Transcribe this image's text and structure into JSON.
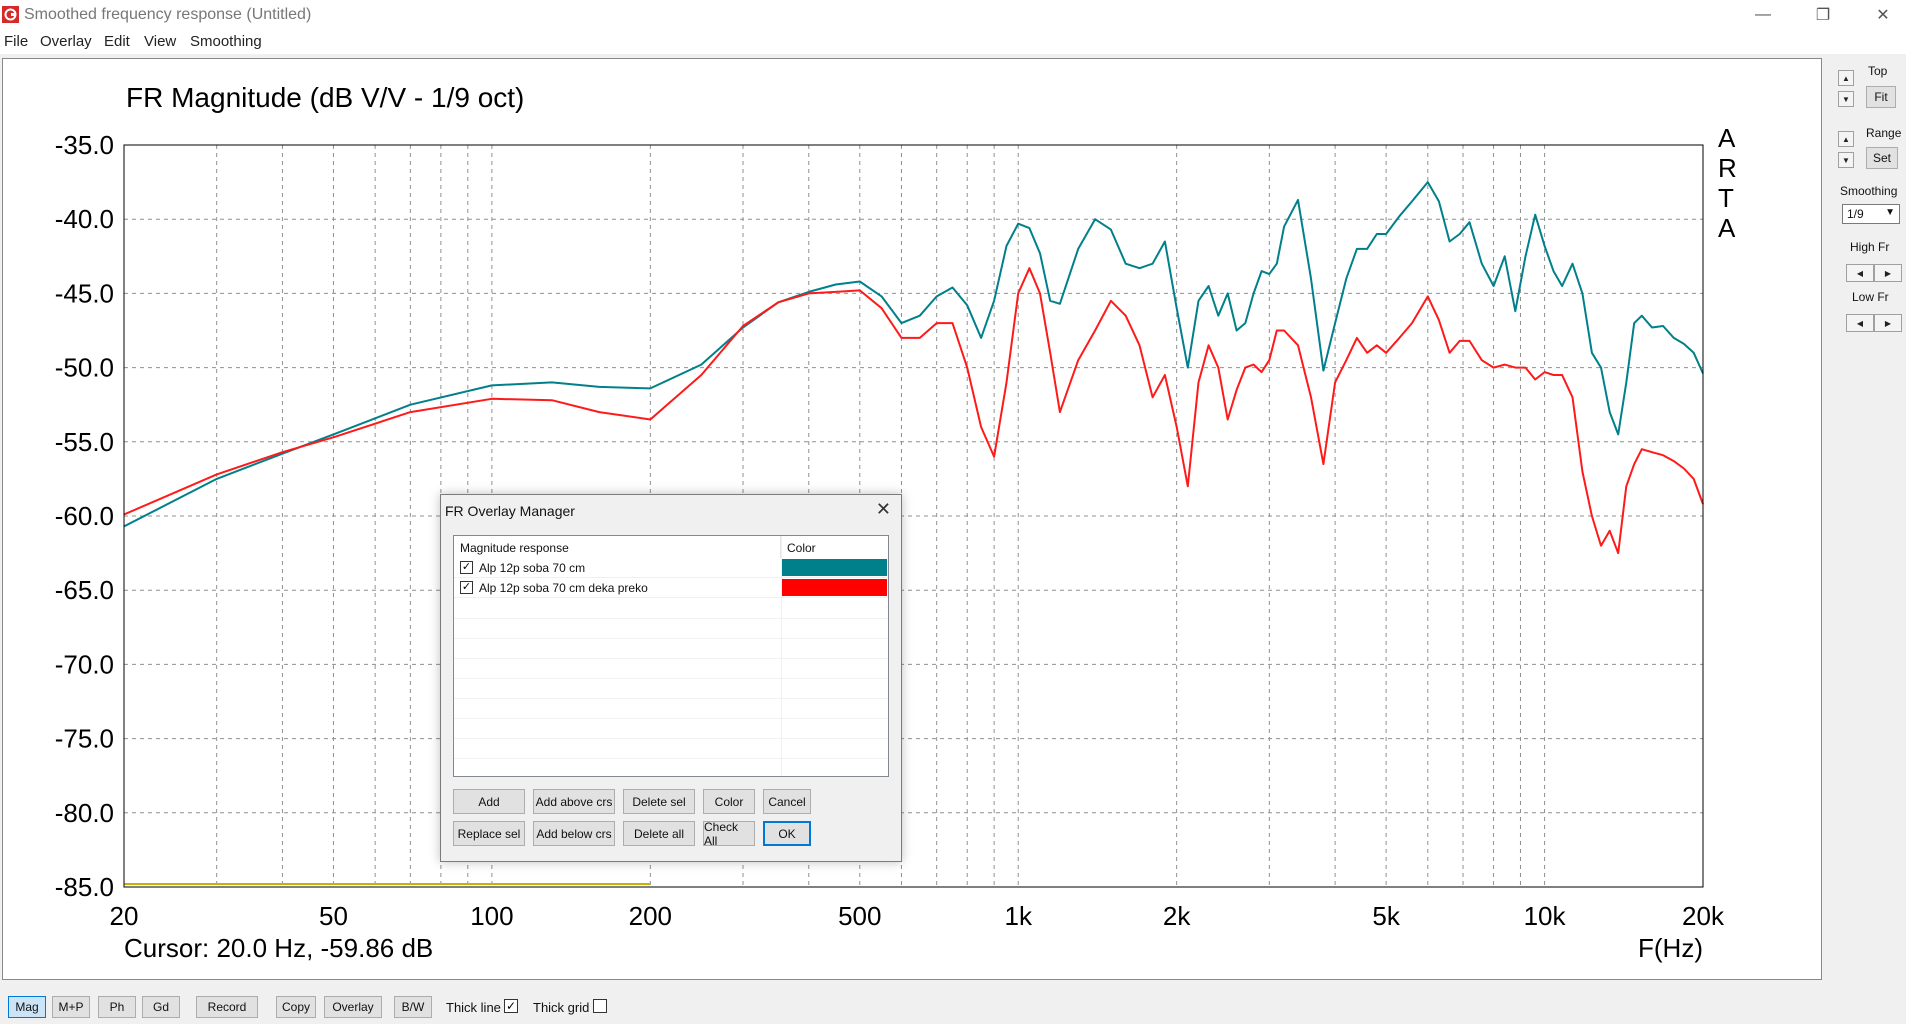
{
  "window": {
    "title": "Smoothed frequency response (Untitled)",
    "minimize_icon": "—",
    "restore_icon": "❐",
    "close_icon": "✕"
  },
  "menu": [
    "File",
    "Overlay",
    "Edit",
    "View",
    "Smoothing"
  ],
  "colors": {
    "teal": "#00808a",
    "red": "#ff1a1a",
    "yellow": "#c8b400",
    "grid": "#909090"
  },
  "chart_data": {
    "type": "line",
    "title": "FR Magnitude (dB V/V - 1/9 oct)",
    "xlabel": "F(Hz)",
    "ylabel": "",
    "x_scale": "log",
    "xlim": [
      20,
      20000
    ],
    "ylim": [
      -85,
      -35
    ],
    "x_ticks": [
      20,
      50,
      100,
      200,
      500,
      1000,
      2000,
      5000,
      10000,
      20000
    ],
    "x_tick_labels": [
      "20",
      "50",
      "100",
      "200",
      "500",
      "1k",
      "2k",
      "5k",
      "10k",
      "20k"
    ],
    "y_ticks": [
      -35,
      -40,
      -45,
      -50,
      -55,
      -60,
      -65,
      -70,
      -75,
      -80,
      -85
    ],
    "y_tick_labels": [
      "-35.0",
      "-40.0",
      "-45.0",
      "-50.0",
      "-55.0",
      "-60.0",
      "-65.0",
      "-70.0",
      "-75.0",
      "-80.0",
      "-85.0"
    ],
    "grid": true,
    "brand_label": "ARTA",
    "cursor_text": "Cursor: 20.0 Hz, -59.86 dB",
    "series": [
      {
        "color": "#00808a",
        "x": [
          20,
          30,
          40,
          50,
          70,
          100,
          130,
          160,
          200,
          250,
          300,
          350,
          400,
          450,
          500,
          550,
          600,
          650,
          700,
          750,
          800,
          850,
          900,
          950,
          1000,
          1050,
          1100,
          1150,
          1200,
          1300,
          1400,
          1500,
          1600,
          1700,
          1800,
          1900,
          2000,
          2100,
          2200,
          2300,
          2400,
          2500,
          2600,
          2700,
          2800,
          2900,
          3000,
          3100,
          3200,
          3400,
          3600,
          3800,
          4000,
          4200,
          4400,
          4600,
          4800,
          5000,
          5300,
          5600,
          6000,
          6300,
          6600,
          6900,
          7200,
          7600,
          8000,
          8400,
          8800,
          9200,
          9600,
          10000,
          10400,
          10800,
          11300,
          11800,
          12300,
          12800,
          13300,
          13800,
          14300,
          14800,
          15300,
          16000,
          16800,
          17600,
          18400,
          19200,
          20000
        ],
        "y": [
          -60.7,
          -57.5,
          -55.8,
          -54.5,
          -52.5,
          -51.2,
          -51,
          -51.3,
          -51.4,
          -49.8,
          -47.3,
          -45.6,
          -44.9,
          -44.4,
          -44.2,
          -45.2,
          -47,
          -46.5,
          -45.2,
          -44.6,
          -45.8,
          -48,
          -45.5,
          -41.8,
          -40.3,
          -40.6,
          -42.3,
          -45.5,
          -45.7,
          -42,
          -40,
          -40.7,
          -43,
          -43.3,
          -43,
          -41.5,
          -46,
          -50,
          -45.5,
          -44.5,
          -46.5,
          -45,
          -47.5,
          -47,
          -45,
          -43.5,
          -43.7,
          -43,
          -40.5,
          -38.7,
          -44,
          -50.2,
          -47,
          -44,
          -42,
          -42,
          -41,
          -41,
          -39.8,
          -38.8,
          -37.5,
          -38.8,
          -41.5,
          -41,
          -40.2,
          -43,
          -44.5,
          -42.5,
          -46.2,
          -42.5,
          -39.7,
          -41.8,
          -43.5,
          -44.5,
          -43,
          -45,
          -49,
          -50,
          -53,
          -54.5,
          -51,
          -47,
          -46.5,
          -47.3,
          -47.2,
          -48,
          -48.4,
          -49,
          -50.4
        ]
      },
      {
        "color": "#ff1a1a",
        "x": [
          20,
          30,
          40,
          50,
          70,
          100,
          130,
          160,
          200,
          250,
          300,
          350,
          400,
          450,
          500,
          550,
          600,
          650,
          700,
          750,
          800,
          850,
          900,
          950,
          1000,
          1050,
          1100,
          1150,
          1200,
          1300,
          1400,
          1500,
          1600,
          1700,
          1800,
          1900,
          2000,
          2100,
          2200,
          2300,
          2400,
          2500,
          2600,
          2700,
          2800,
          2900,
          3000,
          3100,
          3200,
          3400,
          3600,
          3800,
          4000,
          4200,
          4400,
          4600,
          4800,
          5000,
          5300,
          5600,
          6000,
          6300,
          6600,
          6900,
          7200,
          7600,
          8000,
          8400,
          8800,
          9200,
          9600,
          10000,
          10400,
          10800,
          11300,
          11800,
          12300,
          12800,
          13300,
          13800,
          14300,
          14800,
          15300,
          16000,
          16800,
          17600,
          18400,
          19200,
          20000
        ],
        "y": [
          -59.9,
          -57.2,
          -55.7,
          -54.7,
          -53,
          -52.1,
          -52.2,
          -53,
          -53.5,
          -50.5,
          -47.2,
          -45.6,
          -45,
          -44.9,
          -44.8,
          -46,
          -48,
          -48,
          -47,
          -47,
          -50,
          -54,
          -56,
          -51,
          -45,
          -43.3,
          -45,
          -49,
          -53,
          -49.5,
          -47.5,
          -45.5,
          -46.5,
          -48.5,
          -52,
          -50.5,
          -54,
          -58,
          -51,
          -48.5,
          -50,
          -53.5,
          -51.5,
          -50,
          -49.8,
          -50.3,
          -49.5,
          -47.5,
          -47.5,
          -48.5,
          -52,
          -56.5,
          -51,
          -49.5,
          -48,
          -49,
          -48.5,
          -49,
          -48,
          -47,
          -45.2,
          -46.8,
          -49,
          -48.2,
          -48.2,
          -49.5,
          -50,
          -49.8,
          -50,
          -50,
          -50.8,
          -50.3,
          -50.5,
          -50.5,
          -52,
          -57,
          -60,
          -62,
          -61,
          -62.5,
          -58,
          -56.5,
          -55.5,
          -55.7,
          -55.9,
          -56.3,
          -56.8,
          -57.5,
          -59.2
        ]
      },
      {
        "color": "#c8b400",
        "x": [
          20,
          200
        ],
        "y": [
          -84.8,
          -84.8
        ]
      }
    ]
  },
  "right_panel": {
    "top_label": "Top",
    "fit_label": "Fit",
    "range_label": "Range",
    "set_label": "Set",
    "smoothing_label": "Smoothing",
    "smoothing_value": "1/9",
    "high_fr_label": "High Fr",
    "low_fr_label": "Low Fr"
  },
  "toolbar": {
    "mag": "Mag",
    "mp": "M+P",
    "ph": "Ph",
    "gd": "Gd",
    "record": "Record",
    "copy": "Copy",
    "overlay": "Overlay",
    "bw": "B/W",
    "thick_line_label": "Thick line",
    "thick_line_checked": true,
    "thick_grid_label": "Thick grid",
    "thick_grid_checked": false
  },
  "dialog": {
    "title": "FR Overlay Manager",
    "col_magnitude": "Magnitude response",
    "col_color": "Color",
    "rows": [
      {
        "label": "Alp 12p soba 70 cm",
        "checked": true,
        "color": "#00808a"
      },
      {
        "label": "Alp 12p soba 70 cm deka preko",
        "checked": true,
        "color": "#ff0000"
      }
    ],
    "buttons": {
      "add": "Add",
      "add_above": "Add above crs",
      "delete_sel": "Delete sel",
      "color": "Color",
      "cancel": "Cancel",
      "replace_sel": "Replace sel",
      "add_below": "Add below crs",
      "delete_all": "Delete all",
      "check_all": "Check All",
      "ok": "OK"
    }
  }
}
